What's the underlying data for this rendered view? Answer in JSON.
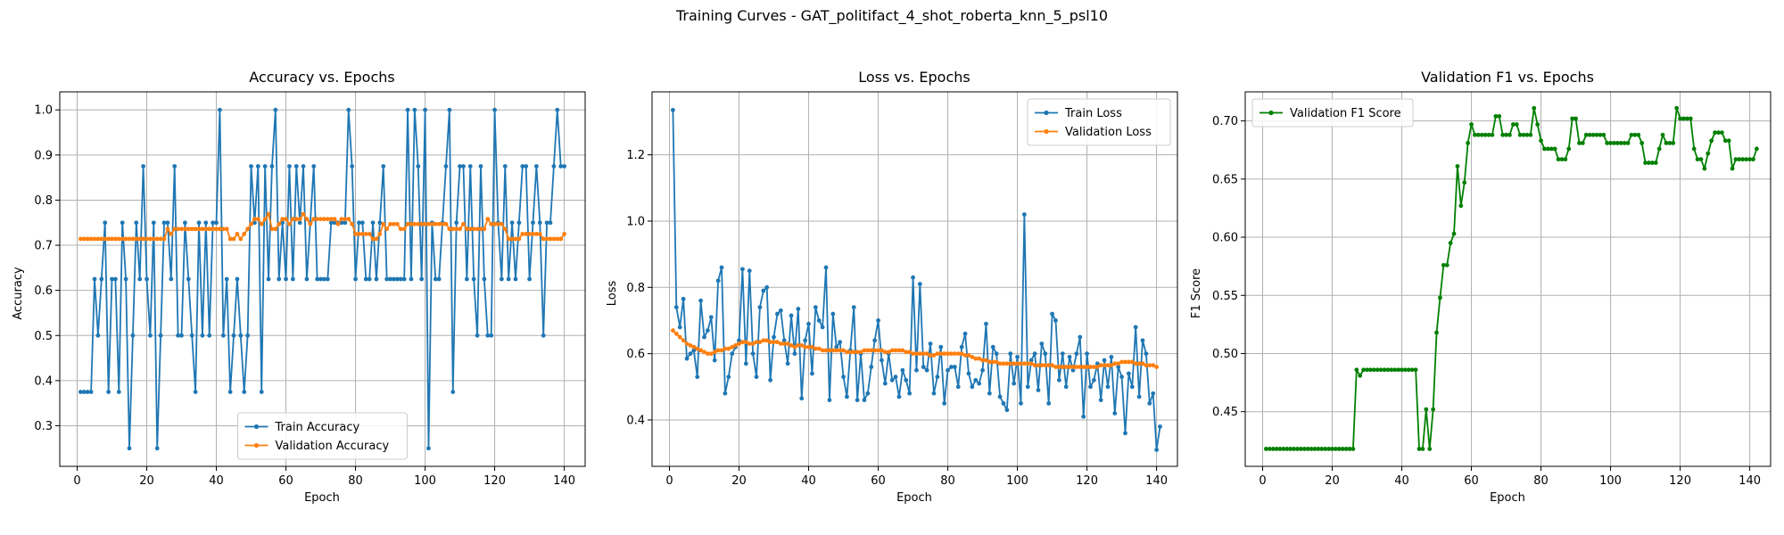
{
  "figure": {
    "suptitle": "Training Curves - GAT_politifact_4_shot_roberta_knn_5_psl10"
  },
  "chart_data": [
    {
      "type": "line",
      "title": "Accuracy vs. Epochs",
      "xlabel": "Epoch",
      "ylabel": "Accuracy",
      "xlim": [
        -5,
        146
      ],
      "ylim": [
        0.21,
        1.04
      ],
      "xticks": [
        0,
        20,
        40,
        60,
        80,
        100,
        120,
        140
      ],
      "yticks": [
        0.3,
        0.4,
        0.5,
        0.6,
        0.7,
        0.8,
        0.9,
        1.0
      ],
      "ytick_labels": [
        "0.3",
        "0.4",
        "0.5",
        "0.6",
        "0.7",
        "0.8",
        "0.9",
        "1.0"
      ],
      "grid": true,
      "legend": "lower center",
      "series": [
        {
          "name": "Train Accuracy",
          "color": "#1f77b4",
          "values": [
            0.375,
            0.375,
            0.375,
            0.375,
            0.625,
            0.5,
            0.625,
            0.75,
            0.375,
            0.625,
            0.625,
            0.375,
            0.75,
            0.625,
            0.25,
            0.5,
            0.75,
            0.625,
            0.875,
            0.625,
            0.5,
            0.75,
            0.25,
            0.5,
            0.75,
            0.75,
            0.625,
            0.875,
            0.5,
            0.5,
            0.75,
            0.625,
            0.5,
            0.375,
            0.75,
            0.5,
            0.75,
            0.5,
            0.75,
            0.75,
            1.0,
            0.5,
            0.625,
            0.375,
            0.5,
            0.625,
            0.5,
            0.375,
            0.5,
            0.875,
            0.75,
            0.875,
            0.375,
            0.875,
            0.625,
            0.875,
            1.0,
            0.625,
            0.75,
            0.625,
            0.875,
            0.625,
            0.875,
            0.75,
            0.875,
            0.625,
            0.75,
            0.875,
            0.625,
            0.625,
            0.625,
            0.625,
            0.75,
            0.75,
            0.75,
            0.75,
            0.75,
            1.0,
            0.875,
            0.625,
            0.75,
            0.75,
            0.625,
            0.625,
            0.75,
            0.625,
            0.75,
            0.875,
            0.625,
            0.625,
            0.625,
            0.625,
            0.625,
            0.625,
            1.0,
            0.625,
            1.0,
            0.875,
            0.625,
            1.0,
            0.25,
            0.75,
            0.625,
            0.625,
            0.75,
            0.875,
            1.0,
            0.375,
            0.75,
            0.875,
            0.875,
            0.625,
            0.875,
            0.625,
            0.5,
            0.875,
            0.625,
            0.5,
            0.5,
            1.0,
            0.75,
            0.625,
            0.875,
            0.625,
            0.75,
            0.625,
            0.75,
            0.875,
            0.875,
            0.625,
            0.75,
            0.875,
            0.75,
            0.5,
            0.75,
            0.75,
            0.875,
            1.0,
            0.875,
            0.875
          ]
        },
        {
          "name": "Validation Accuracy",
          "color": "#ff7f0e",
          "values": [
            0.714,
            0.714,
            0.714,
            0.714,
            0.714,
            0.714,
            0.714,
            0.714,
            0.714,
            0.714,
            0.714,
            0.714,
            0.714,
            0.714,
            0.714,
            0.714,
            0.714,
            0.714,
            0.714,
            0.714,
            0.714,
            0.714,
            0.714,
            0.714,
            0.714,
            0.736,
            0.725,
            0.736,
            0.736,
            0.736,
            0.736,
            0.736,
            0.736,
            0.736,
            0.736,
            0.736,
            0.736,
            0.736,
            0.736,
            0.736,
            0.736,
            0.736,
            0.736,
            0.714,
            0.714,
            0.725,
            0.714,
            0.725,
            0.736,
            0.747,
            0.758,
            0.758,
            0.747,
            0.758,
            0.769,
            0.736,
            0.736,
            0.747,
            0.758,
            0.758,
            0.747,
            0.758,
            0.758,
            0.758,
            0.769,
            0.758,
            0.747,
            0.758,
            0.758,
            0.758,
            0.758,
            0.758,
            0.758,
            0.758,
            0.747,
            0.758,
            0.758,
            0.758,
            0.747,
            0.725,
            0.725,
            0.725,
            0.725,
            0.725,
            0.714,
            0.714,
            0.725,
            0.747,
            0.736,
            0.747,
            0.747,
            0.747,
            0.736,
            0.736,
            0.747,
            0.747,
            0.747,
            0.747,
            0.747,
            0.747,
            0.747,
            0.747,
            0.747,
            0.747,
            0.747,
            0.747,
            0.736,
            0.736,
            0.736,
            0.736,
            0.747,
            0.736,
            0.736,
            0.736,
            0.736,
            0.736,
            0.736,
            0.758,
            0.747,
            0.747,
            0.747,
            0.747,
            0.736,
            0.714,
            0.714,
            0.714,
            0.714,
            0.725,
            0.725,
            0.725,
            0.725,
            0.725,
            0.725,
            0.714,
            0.714,
            0.714,
            0.714,
            0.714,
            0.714,
            0.725
          ]
        }
      ]
    },
    {
      "type": "line",
      "title": "Loss vs. Epochs",
      "xlabel": "Epoch",
      "ylabel": "Loss",
      "xlim": [
        -5,
        146
      ],
      "ylim": [
        0.26,
        1.39
      ],
      "xticks": [
        0,
        20,
        40,
        60,
        80,
        100,
        120,
        140
      ],
      "yticks": [
        0.4,
        0.6,
        0.8,
        1.0,
        1.2
      ],
      "ytick_labels": [
        "0.4",
        "0.6",
        "0.8",
        "1.0",
        "1.2"
      ],
      "grid": true,
      "legend": "upper right",
      "series": [
        {
          "name": "Train Loss",
          "color": "#1f77b4",
          "values": [
            1.335,
            0.74,
            0.68,
            0.765,
            0.585,
            0.6,
            0.61,
            0.53,
            0.76,
            0.65,
            0.67,
            0.71,
            0.58,
            0.82,
            0.86,
            0.48,
            0.53,
            0.6,
            0.62,
            0.64,
            0.855,
            0.57,
            0.85,
            0.6,
            0.53,
            0.74,
            0.79,
            0.8,
            0.52,
            0.65,
            0.72,
            0.73,
            0.64,
            0.57,
            0.715,
            0.6,
            0.735,
            0.465,
            0.64,
            0.69,
            0.54,
            0.74,
            0.7,
            0.68,
            0.86,
            0.46,
            0.72,
            0.62,
            0.635,
            0.53,
            0.47,
            0.61,
            0.74,
            0.46,
            0.6,
            0.46,
            0.48,
            0.56,
            0.64,
            0.7,
            0.58,
            0.51,
            0.6,
            0.52,
            0.53,
            0.47,
            0.55,
            0.52,
            0.48,
            0.83,
            0.55,
            0.81,
            0.56,
            0.55,
            0.63,
            0.48,
            0.53,
            0.62,
            0.45,
            0.55,
            0.56,
            0.56,
            0.5,
            0.62,
            0.66,
            0.54,
            0.5,
            0.52,
            0.51,
            0.55,
            0.69,
            0.48,
            0.62,
            0.6,
            0.47,
            0.45,
            0.43,
            0.6,
            0.51,
            0.59,
            0.45,
            1.02,
            0.5,
            0.58,
            0.6,
            0.49,
            0.63,
            0.6,
            0.45,
            0.72,
            0.7,
            0.52,
            0.6,
            0.5,
            0.59,
            0.55,
            0.6,
            0.65,
            0.41,
            0.6,
            0.5,
            0.52,
            0.57,
            0.46,
            0.58,
            0.5,
            0.59,
            0.42,
            0.56,
            0.53,
            0.36,
            0.54,
            0.5,
            0.68,
            0.47,
            0.64,
            0.6,
            0.45,
            0.48,
            0.31,
            0.38
          ]
        },
        {
          "name": "Validation Loss",
          "color": "#ff7f0e",
          "values": [
            0.67,
            0.66,
            0.65,
            0.64,
            0.63,
            0.625,
            0.62,
            0.615,
            0.61,
            0.605,
            0.6,
            0.6,
            0.605,
            0.61,
            0.61,
            0.615,
            0.615,
            0.62,
            0.625,
            0.63,
            0.635,
            0.635,
            0.63,
            0.63,
            0.635,
            0.635,
            0.64,
            0.64,
            0.635,
            0.635,
            0.635,
            0.63,
            0.63,
            0.63,
            0.625,
            0.62,
            0.625,
            0.625,
            0.62,
            0.62,
            0.62,
            0.615,
            0.615,
            0.61,
            0.61,
            0.61,
            0.61,
            0.61,
            0.61,
            0.61,
            0.605,
            0.605,
            0.605,
            0.605,
            0.605,
            0.61,
            0.61,
            0.61,
            0.61,
            0.61,
            0.61,
            0.605,
            0.605,
            0.61,
            0.61,
            0.61,
            0.61,
            0.605,
            0.605,
            0.6,
            0.6,
            0.6,
            0.6,
            0.6,
            0.595,
            0.595,
            0.6,
            0.6,
            0.6,
            0.6,
            0.6,
            0.6,
            0.6,
            0.6,
            0.595,
            0.595,
            0.59,
            0.585,
            0.585,
            0.58,
            0.58,
            0.575,
            0.575,
            0.575,
            0.57,
            0.57,
            0.57,
            0.57,
            0.57,
            0.57,
            0.57,
            0.57,
            0.57,
            0.57,
            0.565,
            0.565,
            0.565,
            0.565,
            0.565,
            0.565,
            0.56,
            0.56,
            0.56,
            0.56,
            0.56,
            0.56,
            0.56,
            0.56,
            0.56,
            0.56,
            0.56,
            0.56,
            0.56,
            0.565,
            0.565,
            0.565,
            0.565,
            0.57,
            0.57,
            0.575,
            0.575,
            0.575,
            0.575,
            0.57,
            0.57,
            0.57,
            0.565,
            0.565,
            0.565,
            0.56
          ]
        }
      ]
    },
    {
      "type": "line",
      "title": "Validation F1 vs. Epochs",
      "xlabel": "Epoch",
      "ylabel": "F1 Score",
      "xlim": [
        -5,
        146
      ],
      "ylim": [
        0.403,
        0.725
      ],
      "xticks": [
        0,
        20,
        40,
        60,
        80,
        100,
        120,
        140
      ],
      "yticks": [
        0.45,
        0.5,
        0.55,
        0.6,
        0.65,
        0.7
      ],
      "ytick_labels": [
        "0.45",
        "0.50",
        "0.55",
        "0.60",
        "0.65",
        "0.70"
      ],
      "grid": true,
      "legend": "upper left",
      "series": [
        {
          "name": "Validation F1 Score",
          "color": "#008000",
          "values": [
            0.418,
            0.418,
            0.418,
            0.418,
            0.418,
            0.418,
            0.418,
            0.418,
            0.418,
            0.418,
            0.418,
            0.418,
            0.418,
            0.418,
            0.418,
            0.418,
            0.418,
            0.418,
            0.418,
            0.418,
            0.418,
            0.418,
            0.418,
            0.418,
            0.418,
            0.418,
            0.486,
            0.481,
            0.486,
            0.486,
            0.486,
            0.486,
            0.486,
            0.486,
            0.486,
            0.486,
            0.486,
            0.486,
            0.486,
            0.486,
            0.486,
            0.486,
            0.486,
            0.486,
            0.418,
            0.418,
            0.452,
            0.418,
            0.452,
            0.518,
            0.548,
            0.576,
            0.576,
            0.595,
            0.603,
            0.661,
            0.627,
            0.647,
            0.681,
            0.697,
            0.688,
            0.688,
            0.688,
            0.688,
            0.688,
            0.688,
            0.704,
            0.704,
            0.688,
            0.688,
            0.688,
            0.697,
            0.697,
            0.688,
            0.688,
            0.688,
            0.688,
            0.711,
            0.697,
            0.683,
            0.676,
            0.676,
            0.676,
            0.676,
            0.667,
            0.667,
            0.667,
            0.676,
            0.702,
            0.702,
            0.681,
            0.681,
            0.688,
            0.688,
            0.688,
            0.688,
            0.688,
            0.688,
            0.681,
            0.681,
            0.681,
            0.681,
            0.681,
            0.681,
            0.681,
            0.688,
            0.688,
            0.688,
            0.681,
            0.664,
            0.664,
            0.664,
            0.664,
            0.676,
            0.688,
            0.681,
            0.681,
            0.681,
            0.711,
            0.702,
            0.702,
            0.702,
            0.702,
            0.676,
            0.667,
            0.667,
            0.659,
            0.672,
            0.683,
            0.69,
            0.69,
            0.69,
            0.683,
            0.683,
            0.659,
            0.667,
            0.667,
            0.667,
            0.667,
            0.667,
            0.667,
            0.676
          ]
        }
      ]
    }
  ]
}
